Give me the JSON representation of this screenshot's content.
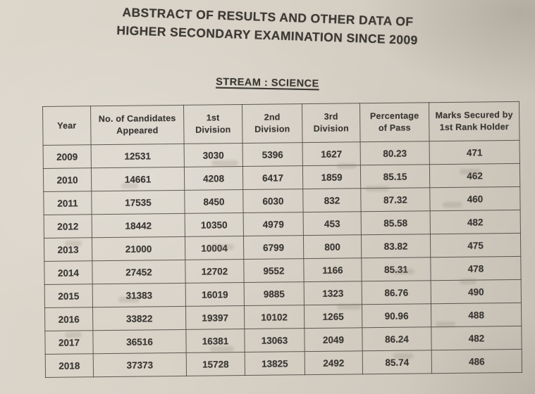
{
  "document": {
    "title_line1": "ABSTRACT OF RESULTS AND OTHER DATA OF",
    "title_line2": "HIGHER SECONDARY EXAMINATION SINCE 2009",
    "stream_heading": "STREAM : SCIENCE"
  },
  "table": {
    "columns": [
      "Year",
      "No. of Candidates\nAppeared",
      "1st\nDivision",
      "2nd\nDivision",
      "3rd\nDivision",
      "Percentage\nof Pass",
      "Marks Secured by\n1st Rank Holder"
    ],
    "rows": [
      [
        "2009",
        "12531",
        "3030",
        "5396",
        "1627",
        "80.23",
        "471"
      ],
      [
        "2010",
        "14661",
        "4208",
        "6417",
        "1859",
        "85.15",
        "462"
      ],
      [
        "2011",
        "17535",
        "8450",
        "6030",
        "832",
        "87.32",
        "460"
      ],
      [
        "2012",
        "18442",
        "10350",
        "4979",
        "453",
        "85.58",
        "482"
      ],
      [
        "2013",
        "21000",
        "10004",
        "6799",
        "800",
        "83.82",
        "475"
      ],
      [
        "2014",
        "27452",
        "12702",
        "9552",
        "1166",
        "85.31",
        "478"
      ],
      [
        "2015",
        "31383",
        "16019",
        "9885",
        "1323",
        "86.76",
        "490"
      ],
      [
        "2016",
        "33822",
        "19397",
        "10102",
        "1265",
        "90.96",
        "488"
      ],
      [
        "2017",
        "36516",
        "16381",
        "13063",
        "2049",
        "86.24",
        "482"
      ],
      [
        "2018",
        "37373",
        "15728",
        "13825",
        "2492",
        "85.74",
        "486"
      ]
    ]
  },
  "colors": {
    "paper": "#d7d1c6",
    "ink": "#3b3835",
    "table_border": "#4a463f"
  }
}
